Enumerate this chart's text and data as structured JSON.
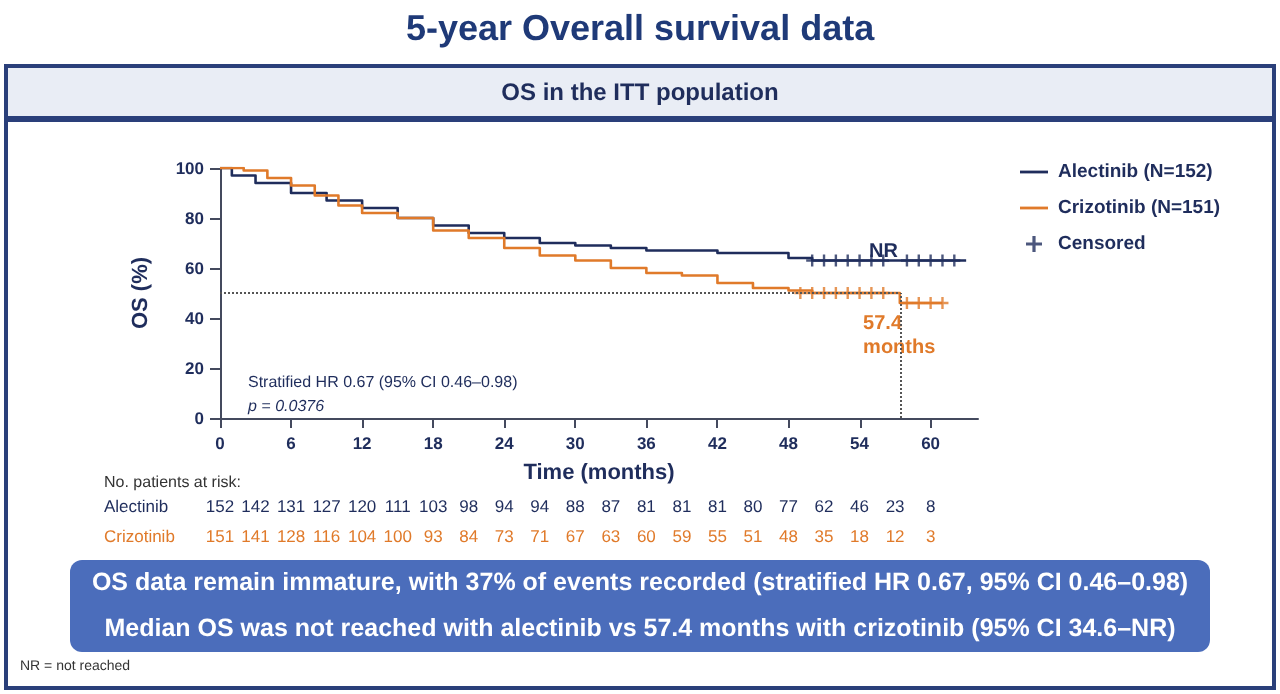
{
  "chart_data": {
    "type": "step",
    "title": "5-year Overall survival data",
    "subtitle": "OS in the ITT population",
    "xlabel": "Time (months)",
    "ylabel": "OS (%)",
    "xlim": [
      0,
      64
    ],
    "xticks": [
      0,
      6,
      12,
      18,
      24,
      30,
      36,
      42,
      48,
      54,
      60
    ],
    "ylim": [
      0,
      100
    ],
    "yticks": [
      0,
      20,
      40,
      60,
      80,
      100
    ],
    "legend": "top right",
    "grid": false,
    "line_style": "solid",
    "series": [
      {
        "name": "Alectinib (N=152)",
        "color": "#1f2d5c",
        "x": [
          0,
          1,
          3,
          6,
          9,
          12,
          15,
          18,
          21,
          24,
          27,
          30,
          33,
          36,
          42,
          48,
          50,
          63
        ],
        "values": [
          100,
          97,
          94,
          90,
          87,
          84,
          80,
          77,
          74,
          72,
          70,
          69,
          68,
          67,
          66,
          64,
          63,
          63
        ]
      },
      {
        "name": "Crizotinib (N=151)",
        "color": "#e07a2a",
        "x": [
          0,
          2,
          4,
          6,
          8,
          10,
          12,
          15,
          18,
          21,
          24,
          27,
          30,
          33,
          36,
          39,
          42,
          45,
          48,
          50,
          57.4,
          61
        ],
        "values": [
          100,
          99,
          96,
          93,
          89,
          85,
          82,
          80,
          75,
          72,
          68,
          65,
          63,
          60,
          58,
          57,
          54,
          52,
          51,
          50,
          46,
          46
        ]
      },
      {
        "name": "Censored",
        "type": "scatter",
        "marker": "cross",
        "color": "#1f2d5c",
        "x": [
          50,
          51,
          52,
          53,
          54,
          55,
          56,
          58,
          59,
          60,
          61,
          62,
          49,
          50,
          51,
          52,
          53,
          54,
          55,
          56,
          58,
          59,
          60,
          61
        ],
        "values": [
          63,
          63,
          63,
          63,
          63,
          63,
          63,
          63,
          63,
          63,
          63,
          63,
          50,
          50,
          50,
          50,
          50,
          50,
          50,
          50,
          46,
          46,
          46,
          46
        ],
        "colors": [
          "#1f2d5c",
          "#1f2d5c",
          "#1f2d5c",
          "#1f2d5c",
          "#1f2d5c",
          "#1f2d5c",
          "#1f2d5c",
          "#1f2d5c",
          "#1f2d5c",
          "#1f2d5c",
          "#1f2d5c",
          "#1f2d5c",
          "#e07a2a",
          "#e07a2a",
          "#e07a2a",
          "#e07a2a",
          "#e07a2a",
          "#e07a2a",
          "#e07a2a",
          "#e07a2a",
          "#e07a2a",
          "#e07a2a",
          "#e07a2a",
          "#e07a2a"
        ]
      }
    ],
    "ref_lines": [
      {
        "axis": "y",
        "value": 50,
        "color": "#555555",
        "line_style": "dotted"
      },
      {
        "axis": "x",
        "value": 57.4,
        "color": "#555555",
        "line_style": "dotted"
      }
    ],
    "annotations": [
      "NR",
      "57.4 months",
      "Stratified HR 0.67 (95% CI 0.46–0.98)",
      "p = 0.0376",
      "No. patients at risk:",
      "Alectinib 152 142 131 127 120 111 103 98 94 94 88 87 81 81 81 80 77 62 46 23 8",
      "Crizotinib 151 141 128 116 104 100 93 84 73 71 67 63 60 59 55 51 48 35 18 12 3",
      "OS data remain immature, with 37% of events recorded (stratified HR 0.67, 95% CI 0.46–0.98)",
      "Median OS was not reached with alectinib vs 57.4 months with crizotinib (95% CI 34.6–NR)",
      "NR = not reached"
    ]
  }
}
